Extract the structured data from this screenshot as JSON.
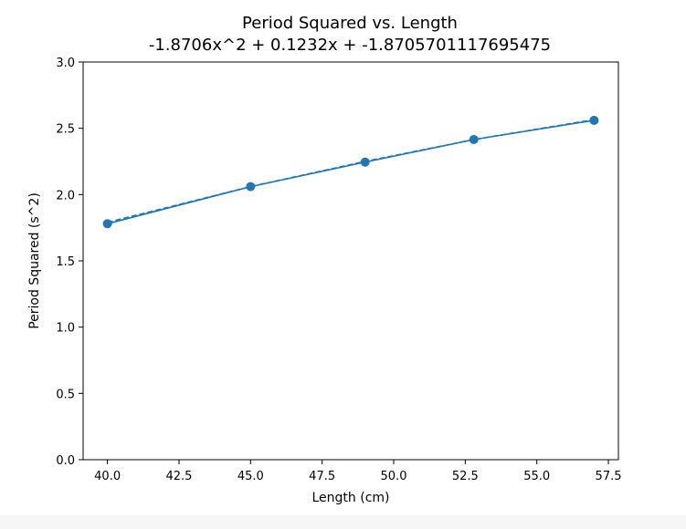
{
  "chart_data": {
    "type": "line",
    "title": "Period Squared vs. Length",
    "subtitle": "-1.8706x^2 + 0.1232x + -1.8705701117695475",
    "xlabel": "Length (cm)",
    "ylabel": "Period Squared (s^2)",
    "xlim": [
      39.15,
      57.85
    ],
    "ylim": [
      0.0,
      3.0
    ],
    "x_ticks": [
      40.0,
      42.5,
      45.0,
      47.5,
      50.0,
      52.5,
      55.0,
      57.5
    ],
    "x_tick_labels": [
      "40.0",
      "42.5",
      "45.0",
      "47.5",
      "50.0",
      "52.5",
      "55.0",
      "57.5"
    ],
    "y_ticks": [
      0.0,
      0.5,
      1.0,
      1.5,
      2.0,
      2.5,
      3.0
    ],
    "y_tick_labels": [
      "0.0",
      "0.5",
      "1.0",
      "1.5",
      "2.0",
      "2.5",
      "3.0"
    ],
    "grid": false,
    "series": [
      {
        "style": "scatter",
        "x": [
          40.0,
          45.0,
          49.0,
          52.8,
          57.0
        ],
        "y": [
          1.78,
          2.06,
          2.245,
          2.415,
          2.56
        ],
        "color": "#1f77b4"
      },
      {
        "style": "dashed-line",
        "x": [
          40.0,
          45.0,
          49.0,
          52.8,
          57.0
        ],
        "y": [
          1.79,
          2.06,
          2.25,
          2.415,
          2.565
        ],
        "color": "#1f77b4"
      }
    ]
  }
}
